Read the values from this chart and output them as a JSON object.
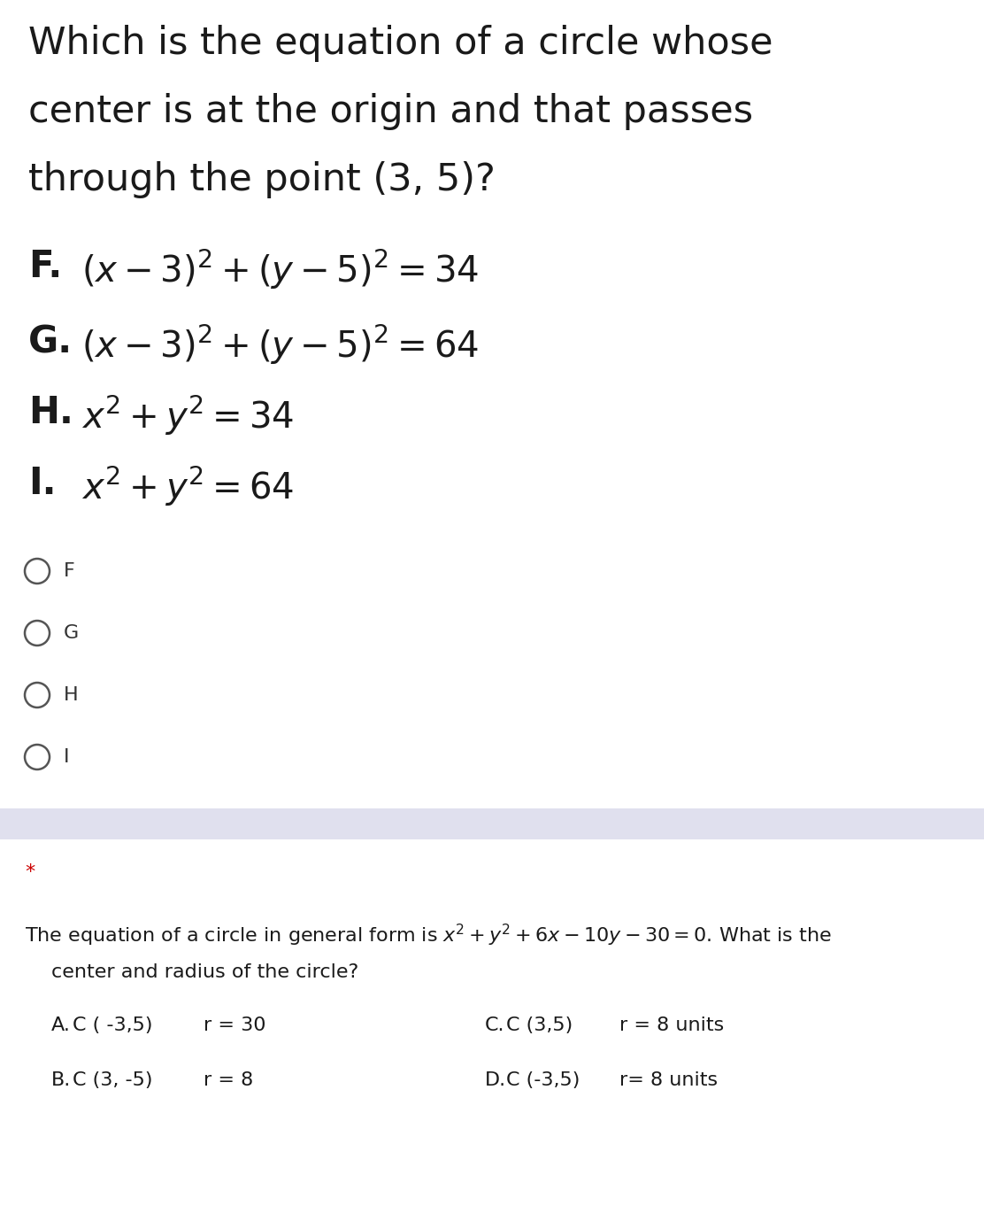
{
  "bg_color": "#ffffff",
  "separator_color": "#e0e0ee",
  "title_line1": "Which is the equation of a circle whose",
  "title_line2": "center is at the origin and that passes",
  "title_line3": "through the point (3, 5)?",
  "option_labels": [
    "F.",
    "G.",
    "H.",
    "I."
  ],
  "option_texts": [
    "$(x - 3)^2 + (y - 5)^2 = 34$",
    "$(x - 3)^2 + (y - 5)^2 = 64$",
    "$x^2 + y^2 = 34$",
    "$x^2 + y^2 = 64$"
  ],
  "radio_labels": [
    "F",
    "G",
    "H",
    "I"
  ],
  "star_color": "#cc0000",
  "q2_text1": "The equation of a circle in general form is $x^2 +y^2 +6x - 10y$ $-30 =0$. What is the",
  "q2_text2": "center and radius of the circle?",
  "ans_row1_left_label": "A.",
  "ans_row1_left_center": "C ( -3,5)",
  "ans_row1_left_r": "r = 30",
  "ans_row1_right_label": "C.",
  "ans_row1_right_center": "C (3,5)",
  "ans_row1_right_r": "r = 8 units",
  "ans_row2_left_label": "B.",
  "ans_row2_left_center": "C (3, -5)",
  "ans_row2_left_r": "r = 8",
  "ans_row2_right_label": "D.",
  "ans_row2_right_center": "C (-3,5)",
  "ans_row2_right_r": "r= 8 units",
  "title_fontsize": 31,
  "option_label_fontsize": 30,
  "option_text_fontsize": 29,
  "radio_fontsize": 16,
  "q2_fontsize": 16,
  "ans_fontsize": 16
}
